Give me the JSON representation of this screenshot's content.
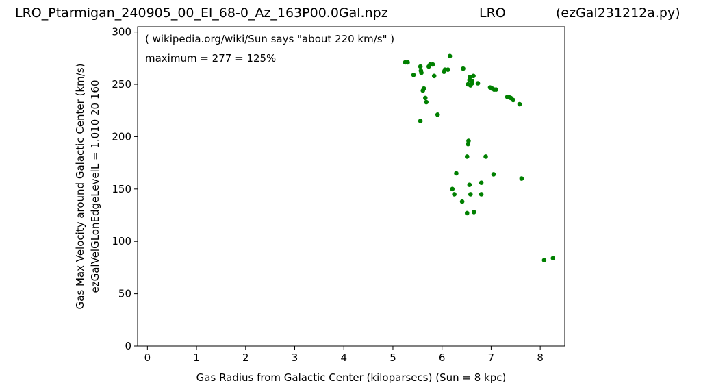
{
  "header": {
    "file_title": "LRO_Ptarmigan_240905_00_El_68-0_Az_163P00.0Gal.npz",
    "site_title": "LRO",
    "program_title": "(ezGal231212a.py)"
  },
  "annotations": {
    "reference_note": "( wikipedia.org/wiki/Sun says \"about 220 km/s\" )",
    "maximum_note": "maximum = 277 = 125%"
  },
  "chart_data": {
    "type": "scatter",
    "xlabel": "Gas Radius from Galactic Center (kiloparsecs)  (Sun = 8 kpc)",
    "ylabel_lines": [
      "Gas Max Velocity around Galactic Center (km/s)",
      "ezGalVelGLonEdgeLevelL = 1.010  20  160"
    ],
    "xlim": [
      -0.2,
      8.5
    ],
    "ylim": [
      0,
      305
    ],
    "x_ticks": [
      0,
      1,
      2,
      3,
      4,
      5,
      6,
      7,
      8
    ],
    "y_ticks": [
      0,
      50,
      100,
      150,
      200,
      250,
      300
    ],
    "grid": false,
    "series_color": "#008000",
    "points": [
      {
        "x": 5.25,
        "y": 271
      },
      {
        "x": 5.3,
        "y": 271
      },
      {
        "x": 5.42,
        "y": 259
      },
      {
        "x": 5.56,
        "y": 267
      },
      {
        "x": 5.57,
        "y": 263
      },
      {
        "x": 5.58,
        "y": 261
      },
      {
        "x": 5.56,
        "y": 215
      },
      {
        "x": 5.61,
        "y": 244
      },
      {
        "x": 5.63,
        "y": 246
      },
      {
        "x": 5.66,
        "y": 237
      },
      {
        "x": 5.68,
        "y": 233
      },
      {
        "x": 5.73,
        "y": 267
      },
      {
        "x": 5.76,
        "y": 269
      },
      {
        "x": 5.81,
        "y": 269
      },
      {
        "x": 5.84,
        "y": 258
      },
      {
        "x": 5.91,
        "y": 221
      },
      {
        "x": 6.04,
        "y": 262
      },
      {
        "x": 6.06,
        "y": 264
      },
      {
        "x": 6.12,
        "y": 264
      },
      {
        "x": 6.16,
        "y": 277
      },
      {
        "x": 6.43,
        "y": 265
      },
      {
        "x": 6.53,
        "y": 250
      },
      {
        "x": 6.56,
        "y": 254
      },
      {
        "x": 6.57,
        "y": 257
      },
      {
        "x": 6.58,
        "y": 249
      },
      {
        "x": 6.61,
        "y": 253
      },
      {
        "x": 6.64,
        "y": 258
      },
      {
        "x": 6.61,
        "y": 251
      },
      {
        "x": 6.73,
        "y": 251
      },
      {
        "x": 6.98,
        "y": 247
      },
      {
        "x": 7.02,
        "y": 246
      },
      {
        "x": 7.06,
        "y": 245
      },
      {
        "x": 7.1,
        "y": 245
      },
      {
        "x": 7.33,
        "y": 238
      },
      {
        "x": 7.36,
        "y": 238
      },
      {
        "x": 7.4,
        "y": 237
      },
      {
        "x": 7.45,
        "y": 235
      },
      {
        "x": 7.58,
        "y": 231
      },
      {
        "x": 6.54,
        "y": 196
      },
      {
        "x": 6.53,
        "y": 193
      },
      {
        "x": 6.51,
        "y": 181
      },
      {
        "x": 6.89,
        "y": 181
      },
      {
        "x": 6.29,
        "y": 165
      },
      {
        "x": 7.05,
        "y": 164
      },
      {
        "x": 7.62,
        "y": 160
      },
      {
        "x": 6.8,
        "y": 156
      },
      {
        "x": 6.56,
        "y": 154
      },
      {
        "x": 6.21,
        "y": 150
      },
      {
        "x": 6.25,
        "y": 145
      },
      {
        "x": 6.58,
        "y": 145
      },
      {
        "x": 6.8,
        "y": 145
      },
      {
        "x": 6.41,
        "y": 138
      },
      {
        "x": 6.51,
        "y": 127
      },
      {
        "x": 6.65,
        "y": 128
      },
      {
        "x": 8.08,
        "y": 82
      },
      {
        "x": 8.26,
        "y": 84
      }
    ]
  }
}
